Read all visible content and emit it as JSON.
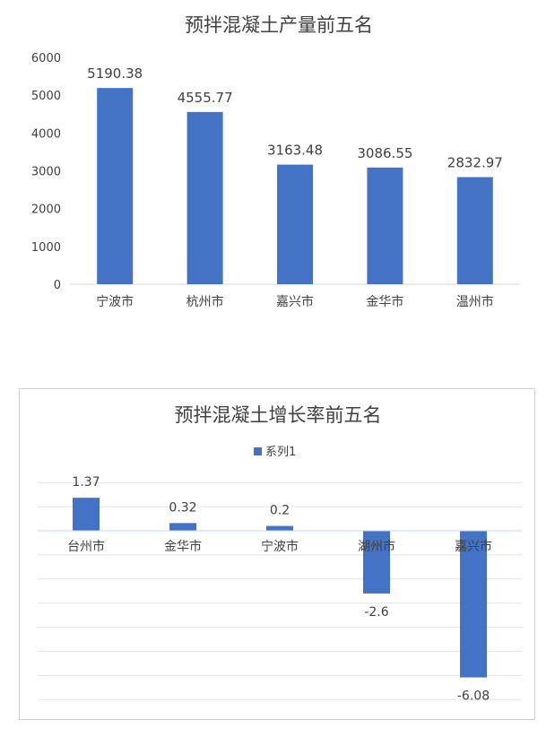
{
  "chart_data": [
    {
      "type": "bar",
      "title": "预拌混凝土产量前五名",
      "categories": [
        "宁波市",
        "杭州市",
        "嘉兴市",
        "金华市",
        "温州市"
      ],
      "values": [
        5190.38,
        4555.77,
        3163.48,
        3086.55,
        2832.97
      ],
      "value_labels": [
        "5190.38",
        "4555.77",
        "3163.48",
        "3086.55",
        "2832.97"
      ],
      "yticks": [
        "0",
        "1000",
        "2000",
        "3000",
        "4000",
        "5000",
        "6000"
      ],
      "ylim": [
        0,
        6000
      ],
      "grid": false,
      "color": "#4472C4"
    },
    {
      "type": "bar",
      "title": "预拌混凝土增长率前五名",
      "legend": "系列1",
      "legend_position": "top",
      "categories": [
        "台州市",
        "金华市",
        "宁波市",
        "湖州市",
        "嘉兴市"
      ],
      "values": [
        1.37,
        0.32,
        0.2,
        -2.6,
        -6.08
      ],
      "value_labels": [
        "1.37",
        "0.32",
        "0.2",
        "-2.6",
        "-6.08"
      ],
      "ylim": [
        -7,
        2
      ],
      "grid": true,
      "color": "#4472C4"
    }
  ]
}
